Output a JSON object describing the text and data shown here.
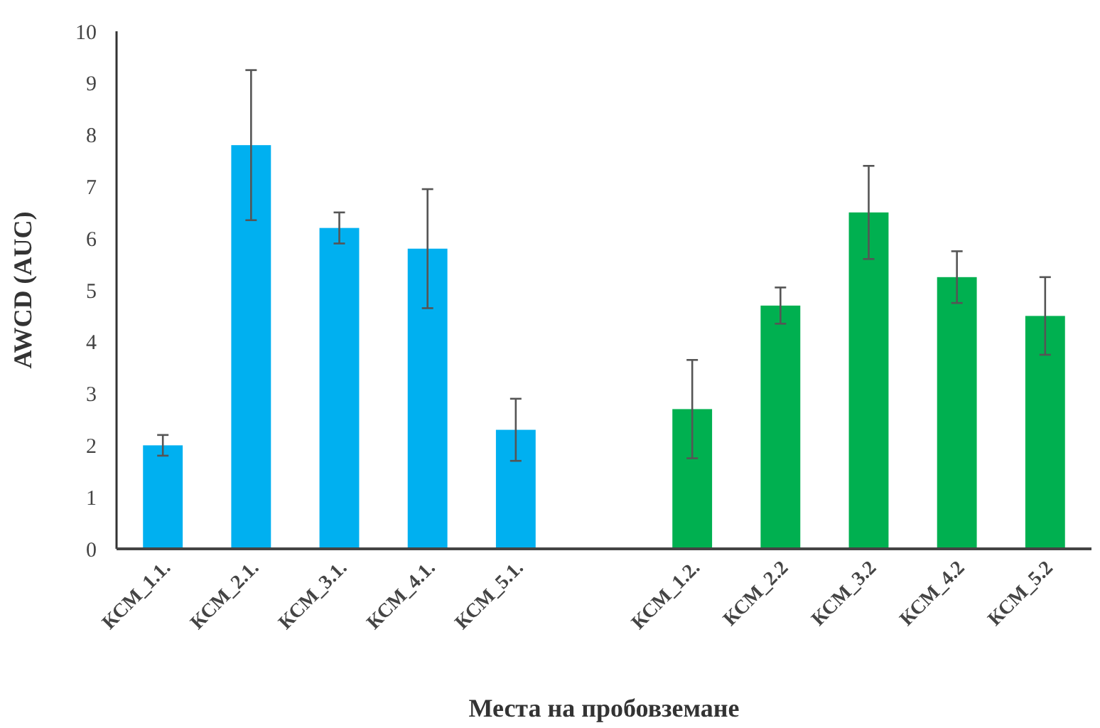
{
  "chart_data": {
    "type": "bar",
    "xlabel": "Места на пробовземане",
    "ylabel": "AWCD (AUC)",
    "categories": [
      "КСМ_1.1.",
      "КСМ_2.1.",
      "КСМ_3.1.",
      "КСМ_4.1.",
      "КСМ_5.1.",
      null,
      "КСМ_1.2.",
      "КСМ_2.2",
      "КСМ_3.2",
      "КСМ_4.2",
      "КСМ_5.2"
    ],
    "values": [
      2.0,
      7.8,
      6.2,
      5.8,
      2.3,
      null,
      2.7,
      4.7,
      6.5,
      5.25,
      4.5
    ],
    "errors": [
      0.2,
      1.45,
      0.3,
      1.15,
      0.6,
      null,
      0.95,
      0.35,
      0.9,
      0.5,
      0.75
    ],
    "colors": [
      "#00b0f0",
      "#00b0f0",
      "#00b0f0",
      "#00b0f0",
      "#00b0f0",
      null,
      "#00b050",
      "#00b050",
      "#00b050",
      "#00b050",
      "#00b050"
    ],
    "ylim": [
      0,
      10
    ],
    "yticks": [
      0,
      1,
      2,
      3,
      4,
      5,
      6,
      7,
      8,
      9,
      10
    ],
    "grid": false
  }
}
